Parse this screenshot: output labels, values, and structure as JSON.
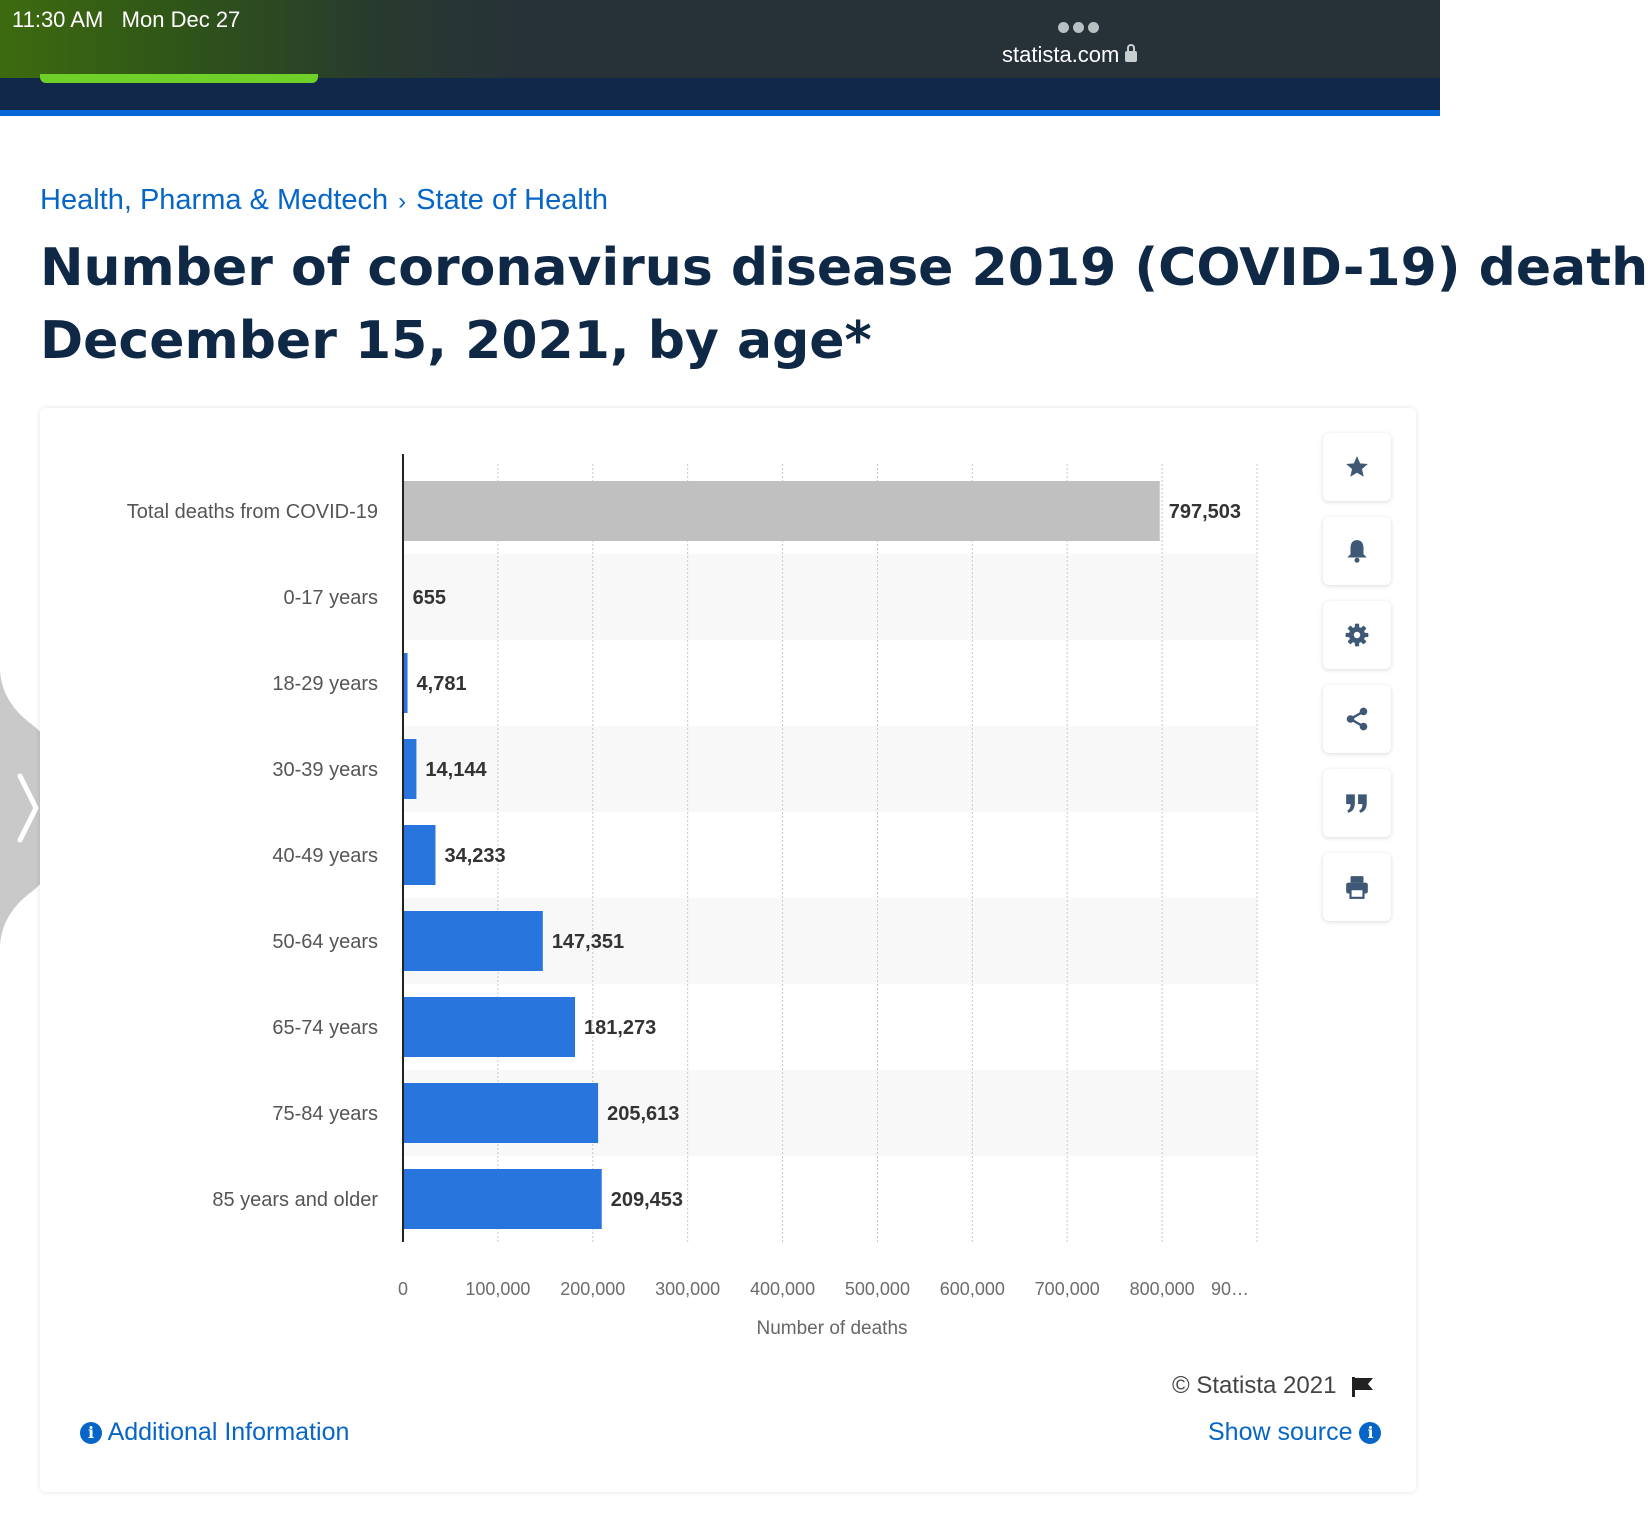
{
  "status": {
    "time": "11:30 AM",
    "date": "Mon Dec 27",
    "url": "statista.com"
  },
  "breadcrumb": {
    "item1": "Health, Pharma & Medtech",
    "separator": "›",
    "item2": "State of Health"
  },
  "title": {
    "line1": "Number of coronavirus disease 2019 (COVID-19) death",
    "line2": "December 15, 2021, by age*"
  },
  "toolbar": [
    "star-icon",
    "bell-icon",
    "gear-icon",
    "share-icon",
    "quote-icon",
    "print-icon"
  ],
  "footer": {
    "copyright": "© Statista 2021",
    "additional_info": "Additional Information",
    "show_source": "Show source",
    "info_glyph": "i"
  },
  "colors": {
    "bar": "#2876dd",
    "total_bar": "#c0c0c0",
    "accent": "#0666c7",
    "nav": "#12284a"
  },
  "chart_data": {
    "type": "bar",
    "orientation": "horizontal",
    "categories": [
      "Total deaths from COVID-19",
      "0-17 years",
      "18-29 years",
      "30-39 years",
      "40-49 years",
      "50-64 years",
      "65-74 years",
      "75-84 years",
      "85 years and older"
    ],
    "values": [
      797503,
      655,
      4781,
      14144,
      34233,
      147351,
      181273,
      205613,
      209453
    ],
    "value_labels": [
      "797,503",
      "655",
      "4,781",
      "14,144",
      "34,233",
      "147,351",
      "181,273",
      "205,613",
      "209,453"
    ],
    "xticks": [
      "0",
      "100,000",
      "200,000",
      "300,000",
      "400,000",
      "500,000",
      "600,000",
      "700,000",
      "800,000",
      "90…"
    ],
    "xlim": [
      0,
      900000
    ],
    "xlabel": "Number of deaths",
    "grid": true
  }
}
